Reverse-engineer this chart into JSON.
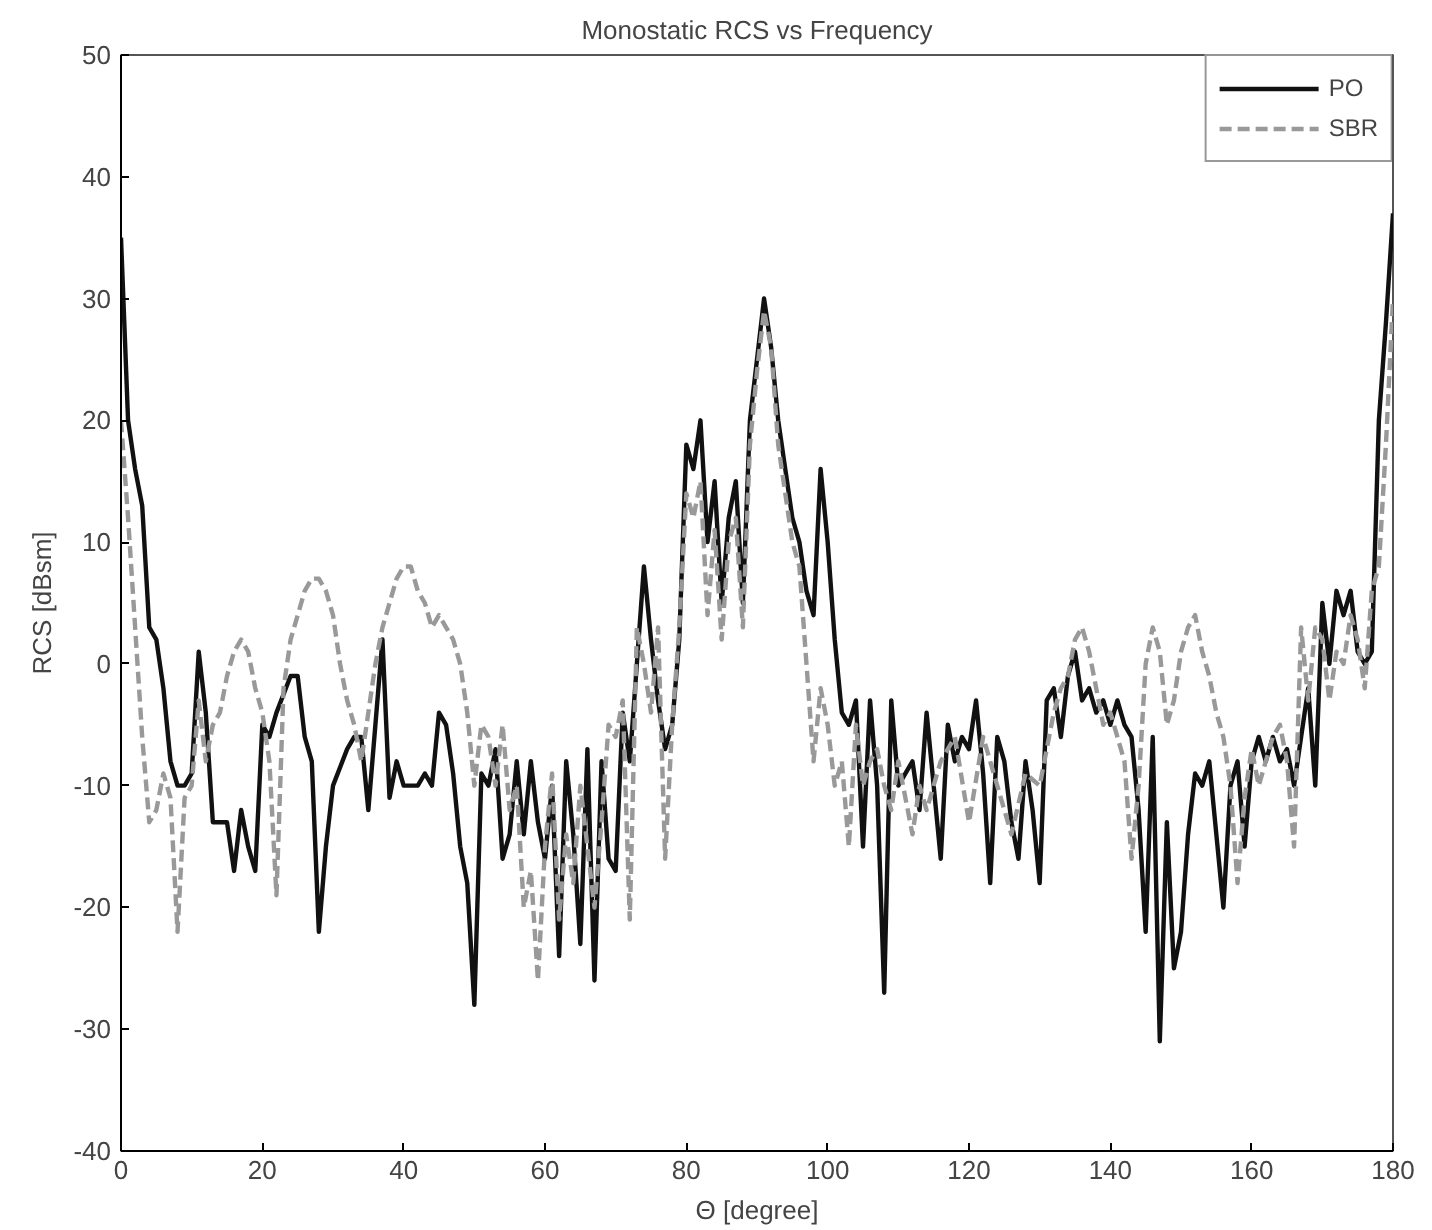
{
  "chart_data": {
    "type": "line",
    "title": "Monostatic RCS vs Frequency",
    "xlabel": "Θ [degree]",
    "ylabel": "RCS [dBsm]",
    "xlim": [
      0,
      180
    ],
    "ylim": [
      -40,
      50
    ],
    "xticks": [
      0,
      20,
      40,
      60,
      80,
      100,
      120,
      140,
      160,
      180
    ],
    "yticks": [
      -40,
      -30,
      -20,
      -10,
      0,
      10,
      20,
      30,
      40,
      50
    ],
    "grid": false,
    "legend": "top right",
    "marker": "none",
    "series": [
      {
        "name": "PO",
        "color": "#111111",
        "line_style": "solid",
        "x": [
          0,
          1,
          2,
          3,
          4,
          5,
          6,
          7,
          8,
          9,
          10,
          11,
          12,
          13,
          14,
          15,
          16,
          17,
          18,
          19,
          20,
          21,
          22,
          24,
          25,
          26,
          27,
          28,
          29,
          30,
          32,
          33,
          34,
          35,
          36,
          37,
          38,
          39,
          40,
          42,
          43,
          44,
          45,
          46,
          47,
          48,
          49,
          50,
          51,
          52,
          53,
          54,
          55,
          56,
          57,
          58,
          59,
          60,
          61,
          62,
          63,
          64,
          65,
          66,
          67,
          68,
          69,
          70,
          71,
          72,
          73,
          74,
          75,
          76,
          77,
          78,
          79,
          80,
          81,
          82,
          83,
          84,
          85,
          86,
          87,
          88,
          89,
          90,
          91,
          92,
          93,
          94,
          95,
          96,
          97,
          98,
          99,
          100,
          101,
          102,
          103,
          104,
          105,
          106,
          107,
          108,
          109,
          110,
          112,
          113,
          114,
          115,
          116,
          117,
          118,
          119,
          120,
          121,
          122,
          123,
          124,
          125,
          126,
          127,
          128,
          129,
          130,
          131,
          132,
          133,
          134,
          135,
          136,
          137,
          138,
          139,
          140,
          141,
          142,
          143,
          144,
          145,
          146,
          147,
          148,
          149,
          150,
          151,
          152,
          153,
          154,
          155,
          156,
          157,
          158,
          159,
          160,
          161,
          162,
          163,
          164,
          165,
          166,
          167,
          168,
          169,
          170,
          171,
          172,
          173,
          174,
          175,
          176,
          177,
          178,
          179,
          180
        ],
        "values": [
          35,
          20,
          16,
          13,
          3,
          2,
          -2,
          -8,
          -10,
          -10,
          -9,
          1,
          -4,
          -13,
          -13,
          -13,
          -17,
          -12,
          -15,
          -17,
          -5,
          -6,
          -4,
          -1,
          -1,
          -6,
          -8,
          -22,
          -15,
          -10,
          -7,
          -6,
          -6,
          -12,
          -5,
          2,
          -11,
          -8,
          -10,
          -10,
          -9,
          -10,
          -4,
          -5,
          -9,
          -15,
          -18,
          -28,
          -9,
          -10,
          -7,
          -16,
          -14,
          -8,
          -14,
          -8,
          -13,
          -16,
          -10,
          -24,
          -8,
          -14,
          -23,
          -7,
          -26,
          -8,
          -16,
          -17,
          -4,
          -8,
          0,
          8,
          2,
          -3,
          -7,
          -5,
          2,
          18,
          16,
          20,
          10,
          15,
          5,
          12,
          15,
          5,
          20,
          25,
          30,
          26,
          20,
          16,
          12,
          10,
          6,
          4,
          16,
          10,
          2,
          -4,
          -5,
          -3,
          -15,
          -3,
          -10,
          -27,
          -3,
          -10,
          -8,
          -12,
          -4,
          -10,
          -16,
          -5,
          -8,
          -6,
          -7,
          -3,
          -9,
          -18,
          -6,
          -8,
          -13,
          -16,
          -8,
          -12,
          -18,
          -3,
          -2,
          -6,
          -1,
          1,
          -3,
          -2,
          -4,
          -3,
          -5,
          -3,
          -5,
          -6,
          -12,
          -22,
          -6,
          -31,
          -13,
          -25,
          -22,
          -14,
          -9,
          -10,
          -8,
          -14,
          -20,
          -10,
          -8,
          -15,
          -8,
          -6,
          -8,
          -6,
          -8,
          -7,
          -10,
          -6,
          -2,
          -10,
          5,
          0,
          6,
          4,
          6,
          1,
          0,
          1,
          20,
          28,
          37
        ]
      },
      {
        "name": "SBR",
        "color": "#999999",
        "line_style": "dashed",
        "x": [
          0,
          1,
          2,
          3,
          4,
          5,
          6,
          7,
          8,
          9,
          10,
          11,
          12,
          13,
          14,
          15,
          16,
          17,
          18,
          19,
          20,
          21,
          22,
          23,
          24,
          25,
          26,
          27,
          28,
          29,
          30,
          31,
          32,
          33,
          34,
          35,
          36,
          37,
          38,
          39,
          40,
          41,
          42,
          43,
          44,
          45,
          46,
          47,
          48,
          49,
          50,
          51,
          52,
          53,
          54,
          55,
          56,
          57,
          58,
          59,
          60,
          61,
          62,
          63,
          64,
          65,
          66,
          67,
          68,
          69,
          70,
          71,
          72,
          73,
          74,
          75,
          76,
          77,
          78,
          79,
          80,
          81,
          82,
          83,
          84,
          85,
          86,
          87,
          88,
          89,
          90,
          91,
          92,
          93,
          94,
          95,
          96,
          97,
          98,
          99,
          100,
          101,
          102,
          103,
          104,
          105,
          106,
          107,
          108,
          109,
          110,
          112,
          113,
          114,
          116,
          118,
          120,
          122,
          124,
          126,
          128,
          130,
          132,
          133,
          134,
          135,
          136,
          137,
          138,
          139,
          140,
          141,
          142,
          143,
          144,
          145,
          146,
          147,
          148,
          149,
          150,
          151,
          152,
          153,
          154,
          155,
          156,
          157,
          158,
          159,
          160,
          161,
          162,
          163,
          164,
          165,
          166,
          167,
          168,
          169,
          170,
          171,
          172,
          173,
          174,
          175,
          176,
          177,
          178,
          179,
          180
        ],
        "values": [
          20,
          12,
          3,
          -6,
          -13,
          -12,
          -9,
          -11,
          -22,
          -11,
          -10,
          -3,
          -8,
          -5,
          -4,
          -1,
          1,
          2,
          1,
          -2,
          -4,
          -8,
          -19,
          -2,
          2,
          4,
          6,
          7,
          7,
          6,
          4,
          0,
          -3,
          -5,
          -8,
          -4,
          0,
          3,
          5,
          7,
          8,
          8,
          6,
          5,
          3,
          4,
          3,
          2,
          0,
          -4,
          -10,
          -5,
          -6,
          -10,
          -5,
          -12,
          -10,
          -20,
          -17,
          -26,
          -15,
          -9,
          -21,
          -14,
          -18,
          -10,
          -15,
          -20,
          -13,
          -5,
          -6,
          -3,
          -21,
          3,
          0,
          -4,
          3,
          -16,
          -5,
          3,
          14,
          12,
          15,
          4,
          11,
          2,
          10,
          12,
          3,
          18,
          24,
          29,
          26,
          18,
          14,
          10,
          8,
          0,
          -8,
          -2,
          -5,
          -10,
          -8,
          -15,
          -5,
          -10,
          -8,
          -7,
          -10,
          -12,
          -8,
          -14,
          -10,
          -12,
          -8,
          -6,
          -13,
          -6,
          -10,
          -14,
          -9,
          -10,
          -4,
          -2,
          -1,
          2,
          3,
          1,
          -2,
          -5,
          -4,
          -6,
          -8,
          -16,
          -10,
          0,
          3,
          1,
          -5,
          -3,
          1,
          3,
          4,
          1,
          -1,
          -4,
          -6,
          -10,
          -18,
          -11,
          -7,
          -10,
          -8,
          -6,
          -5,
          -8,
          -15,
          3,
          -3,
          3,
          2,
          -3,
          1,
          0,
          4,
          2,
          -2,
          6,
          8,
          18,
          30
        ]
      }
    ]
  }
}
